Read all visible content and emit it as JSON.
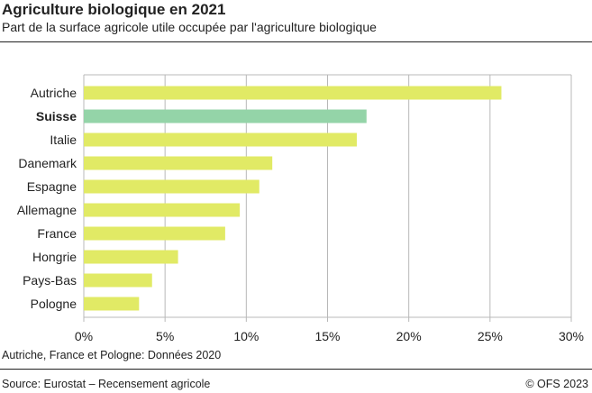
{
  "title": "Agriculture biologique en 2021",
  "subtitle": "Part de la surface agricole utile occupée par l'agriculture biologique",
  "note": "Autriche, France et Pologne: Données 2020",
  "source": "Source: Eurostat –  Recensement agricole",
  "copyright": "© OFS 2023",
  "chart_data": {
    "type": "bar",
    "orientation": "horizontal",
    "categories": [
      "Autriche",
      "Suisse",
      "Italie",
      "Danemark",
      "Espagne",
      "Allemagne",
      "France",
      "Hongrie",
      "Pays-Bas",
      "Pologne"
    ],
    "values": [
      25.7,
      17.4,
      16.8,
      11.6,
      10.8,
      9.6,
      8.7,
      5.8,
      4.2,
      3.4
    ],
    "highlight": "Suisse",
    "xlim": [
      0,
      30
    ],
    "xticks": [
      "0%",
      "5%",
      "10%",
      "15%",
      "20%",
      "25%",
      "30%"
    ],
    "grid": true,
    "colors": {
      "default": "#e1ea65",
      "highlight": "#94d4a8",
      "grid": "#b8b8b8"
    }
  }
}
